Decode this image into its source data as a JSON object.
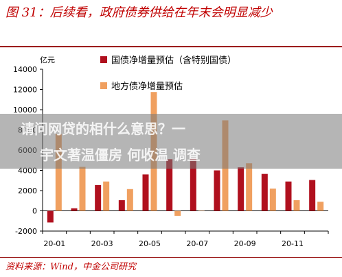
{
  "header": {
    "title": "图 31：后续看，政府债券供给在年末会明显减少"
  },
  "footer": {
    "source": "资料来源：Wind，中金公司研究"
  },
  "overlay": {
    "line1": "请问网贷的相什么意思？一",
    "line2": "宇文著温僵房 何收温 调查"
  },
  "chart_data": {
    "type": "bar",
    "unit_label": "亿元",
    "categories": [
      "20-01",
      "20-02",
      "20-03",
      "20-04",
      "20-05",
      "20-06",
      "20-07",
      "20-08",
      "20-09",
      "20-10",
      "20-11",
      "20-12"
    ],
    "xtick_labels": [
      "20-01",
      "20-03",
      "20-05",
      "20-07",
      "20-09",
      "20-11"
    ],
    "ylim": [
      -2000,
      14000
    ],
    "yticks": [
      -2000,
      0,
      2000,
      4000,
      6000,
      8000,
      10000,
      12000,
      14000
    ],
    "grid": false,
    "legend_position": "top",
    "series": [
      {
        "name": "国债净增量预估（含特别国债）",
        "color": "#b0101e",
        "values": [
          -1150,
          250,
          2550,
          1050,
          3600,
          5100,
          5200,
          4000,
          4300,
          3650,
          2900,
          3050
        ]
      },
      {
        "name": "地方债净增量预估",
        "color": "#f0a060",
        "values": [
          7600,
          4350,
          2900,
          2150,
          11750,
          -500,
          0,
          8950,
          4700,
          2200,
          1050,
          900
        ]
      }
    ]
  }
}
